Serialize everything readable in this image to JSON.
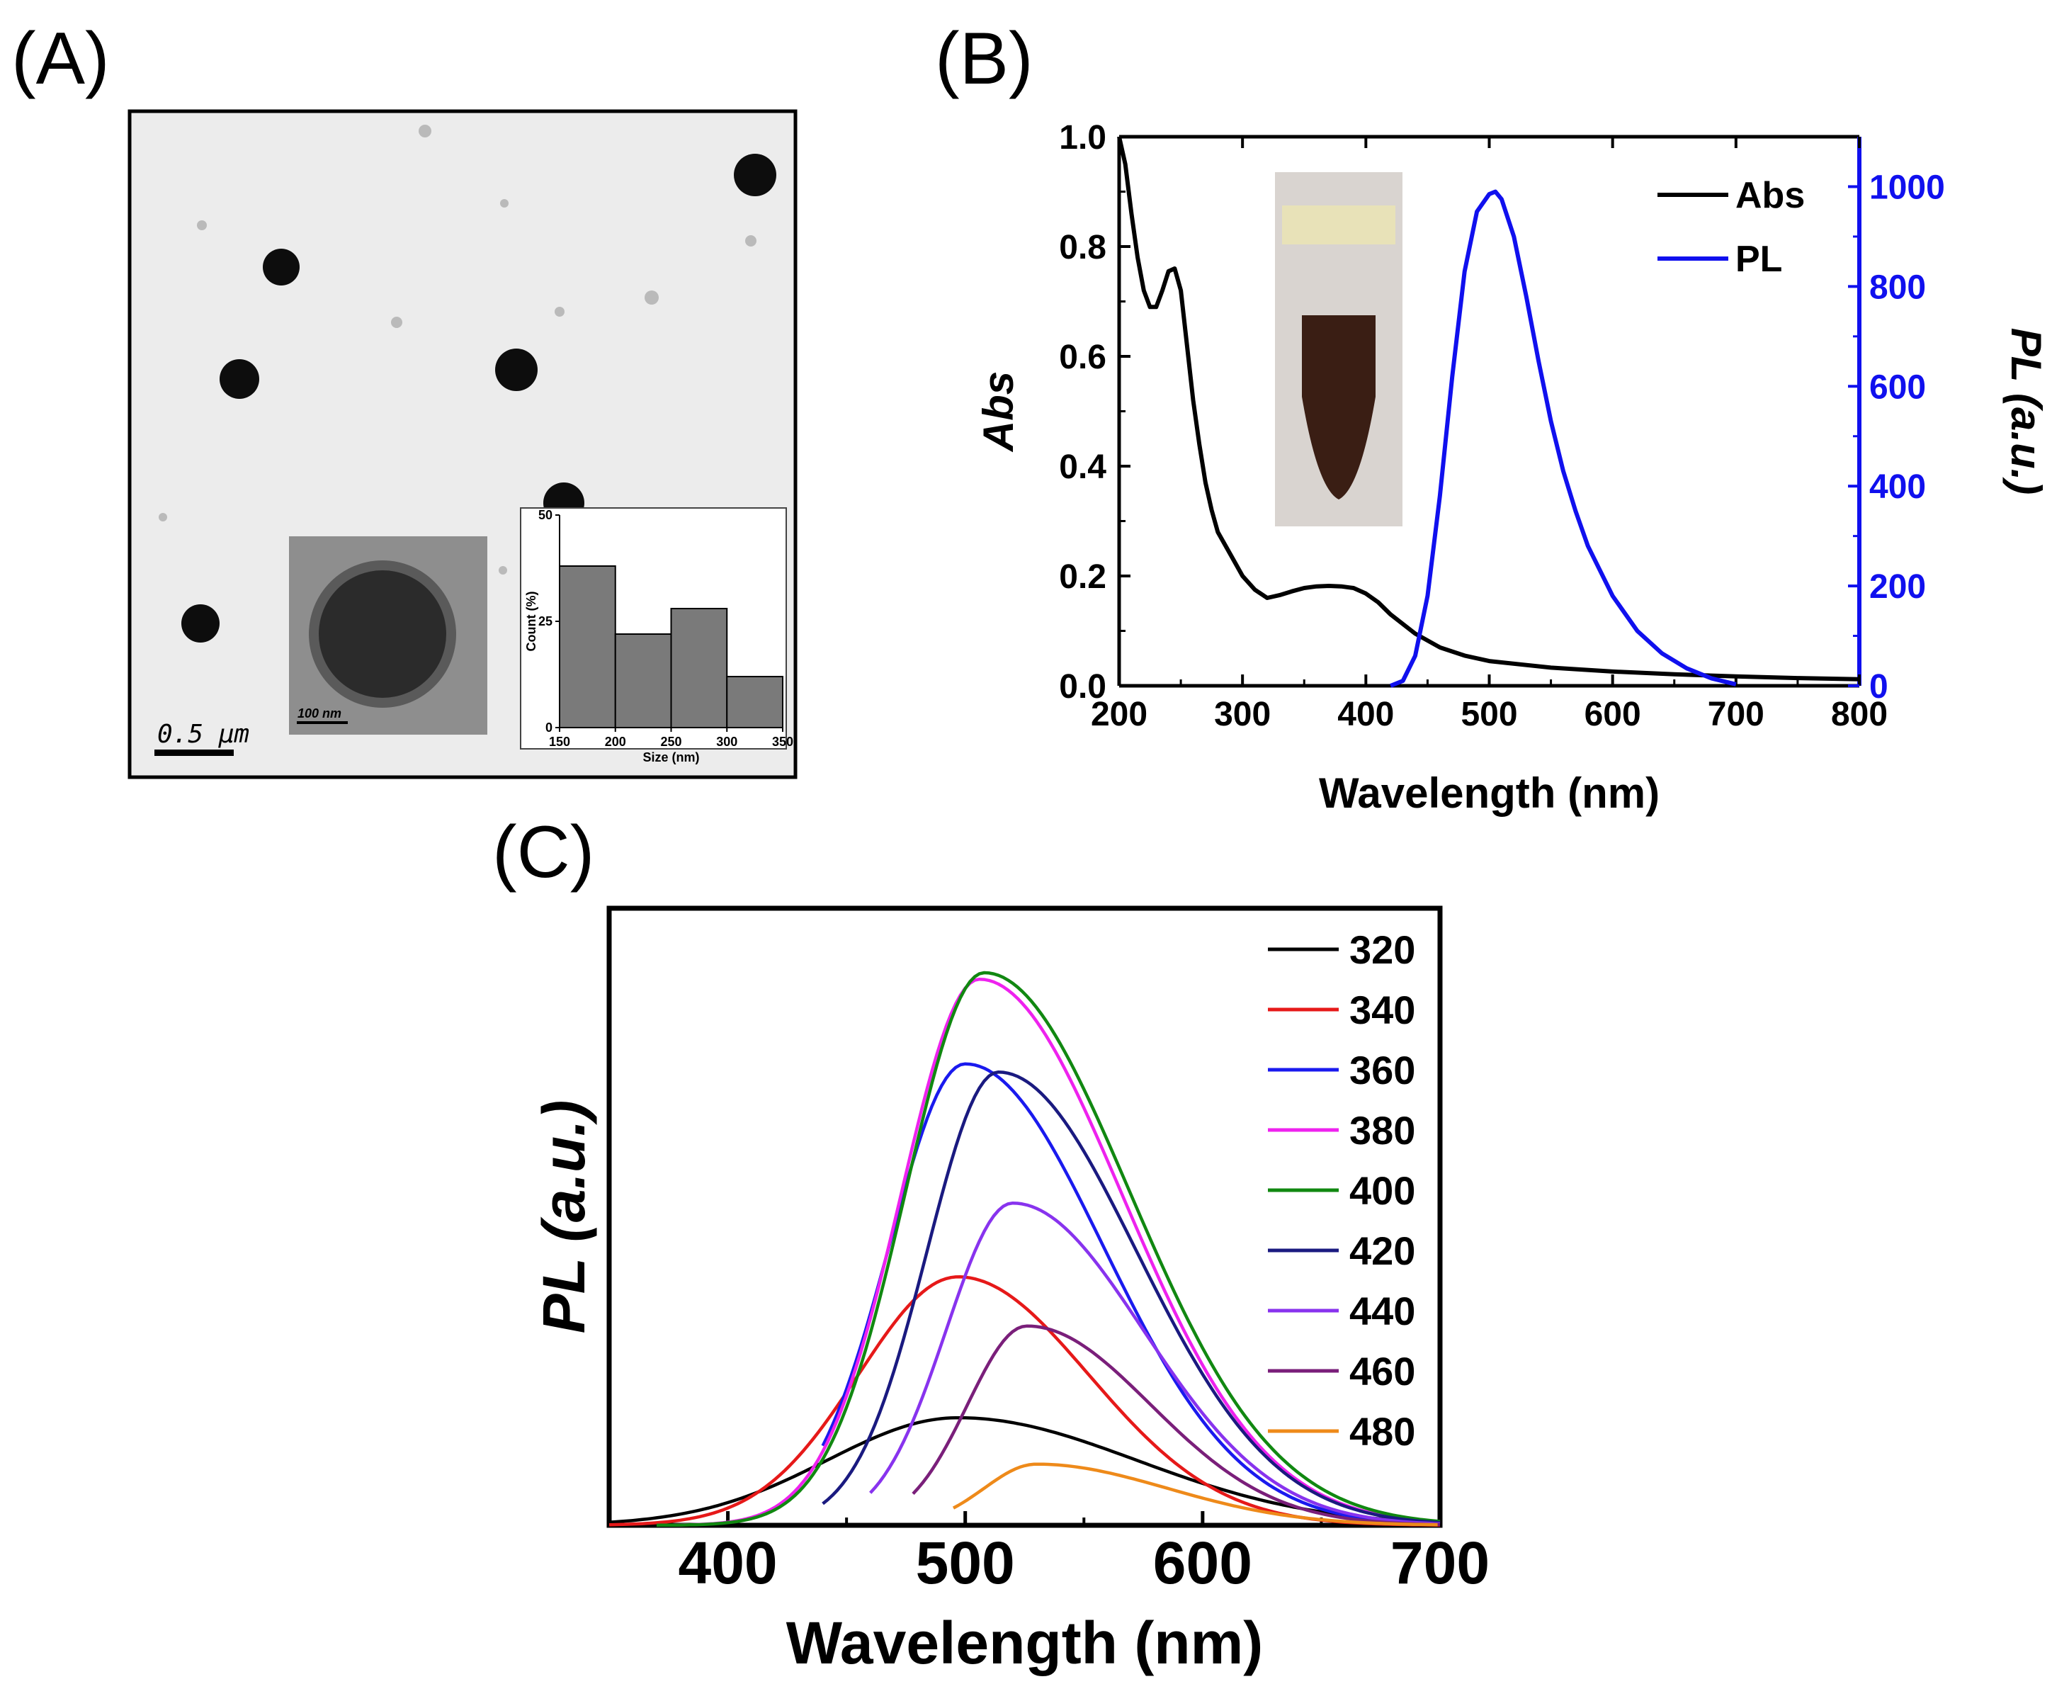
{
  "panels": {
    "a": {
      "label": "(A)",
      "scale_bar": "0.5 μm",
      "inset_scale_bar": "100 nm"
    },
    "b": {
      "label": "(B)"
    },
    "c": {
      "label": "(C)"
    }
  },
  "chart_data": [
    {
      "id": "a_hist",
      "type": "bar",
      "categories": [
        "175",
        "225",
        "275",
        "325"
      ],
      "values": [
        38,
        22,
        28,
        12
      ],
      "xticks": [
        "150",
        "200",
        "250",
        "300",
        "350"
      ],
      "yticks": [
        "0",
        "25",
        "50"
      ],
      "xlabel": "Size (nm)",
      "ylabel": "Count (%)",
      "xlim": [
        150,
        350
      ],
      "ylim": [
        0,
        50
      ],
      "bar_color": "#7a7a7a"
    },
    {
      "id": "b",
      "type": "line",
      "xlabel": "Wavelength (nm)",
      "ylabel": "Abs",
      "ylabel_right": "PL (a.u.)",
      "xlim": [
        200,
        800
      ],
      "ylim": [
        0,
        1.0
      ],
      "ylim_right": [
        0,
        1100
      ],
      "xticks": [
        "200",
        "300",
        "400",
        "500",
        "600",
        "700",
        "800"
      ],
      "yticks": [
        "0.0",
        "0.2",
        "0.4",
        "0.6",
        "0.8",
        "1.0"
      ],
      "yticks_right": [
        "0",
        "200",
        "400",
        "600",
        "800",
        "1000"
      ],
      "legend_position": "top-right",
      "series": [
        {
          "name": "Abs",
          "color": "#000000",
          "axis": "left",
          "x": [
            200,
            205,
            210,
            215,
            220,
            225,
            230,
            235,
            240,
            245,
            250,
            255,
            260,
            265,
            270,
            275,
            280,
            290,
            300,
            310,
            320,
            330,
            340,
            350,
            360,
            370,
            380,
            390,
            400,
            410,
            420,
            440,
            460,
            480,
            500,
            550,
            600,
            650,
            700,
            750,
            800
          ],
          "values": [
            1.0,
            0.95,
            0.86,
            0.78,
            0.72,
            0.69,
            0.69,
            0.72,
            0.755,
            0.76,
            0.72,
            0.62,
            0.52,
            0.44,
            0.37,
            0.32,
            0.28,
            0.24,
            0.2,
            0.175,
            0.16,
            0.165,
            0.172,
            0.178,
            0.181,
            0.182,
            0.181,
            0.178,
            0.168,
            0.152,
            0.13,
            0.095,
            0.07,
            0.055,
            0.045,
            0.033,
            0.026,
            0.021,
            0.017,
            0.014,
            0.012
          ]
        },
        {
          "name": "PL",
          "color": "#1010ee",
          "axis": "right",
          "x": [
            420,
            430,
            440,
            450,
            460,
            470,
            480,
            490,
            500,
            505,
            510,
            520,
            530,
            540,
            550,
            560,
            570,
            580,
            600,
            620,
            640,
            660,
            680,
            700
          ],
          "values": [
            0,
            10,
            60,
            180,
            380,
            620,
            830,
            950,
            985,
            990,
            975,
            900,
            780,
            650,
            530,
            430,
            350,
            280,
            180,
            110,
            65,
            35,
            15,
            3
          ]
        }
      ]
    },
    {
      "id": "c",
      "type": "line",
      "xlabel": "Wavelength (nm)",
      "ylabel": "PL (a.u.)",
      "xlim": [
        350,
        700
      ],
      "ylim": [
        0,
        1.13
      ],
      "xticks": [
        "400",
        "500",
        "600",
        "700"
      ],
      "legend_position": "top-right",
      "series": [
        {
          "name": "320",
          "color": "#000000",
          "start": 350,
          "peak": 497,
          "amp": 0.197,
          "sl": 55,
          "sr": 75
        },
        {
          "name": "340",
          "color": "#e61919",
          "start": 350,
          "peak": 497,
          "amp": 0.455,
          "sl": 42,
          "sr": 55
        },
        {
          "name": "360",
          "color": "#1a1aee",
          "start": 440,
          "peak": 500,
          "amp": 0.845,
          "sl": 32,
          "sr": 58
        },
        {
          "name": "380",
          "color": "#ee22ee",
          "start": 370,
          "peak": 506,
          "amp": 1.0,
          "sl": 33,
          "sr": 60
        },
        {
          "name": "400",
          "color": "#118811",
          "start": 370,
          "peak": 508,
          "amp": 1.012,
          "sl": 33,
          "sr": 61
        },
        {
          "name": "420",
          "color": "#1a1a80",
          "start": 440,
          "peak": 514,
          "amp": 0.83,
          "sl": 30,
          "sr": 58
        },
        {
          "name": "440",
          "color": "#8833ee",
          "start": 460,
          "peak": 520,
          "amp": 0.59,
          "sl": 28,
          "sr": 55
        },
        {
          "name": "460",
          "color": "#7a1f7a",
          "start": 478,
          "peak": 526,
          "amp": 0.365,
          "sl": 25,
          "sr": 52
        },
        {
          "name": "480",
          "color": "#ee8a1a",
          "start": 495,
          "peak": 530,
          "amp": 0.112,
          "sl": 22,
          "sr": 55
        }
      ]
    }
  ]
}
